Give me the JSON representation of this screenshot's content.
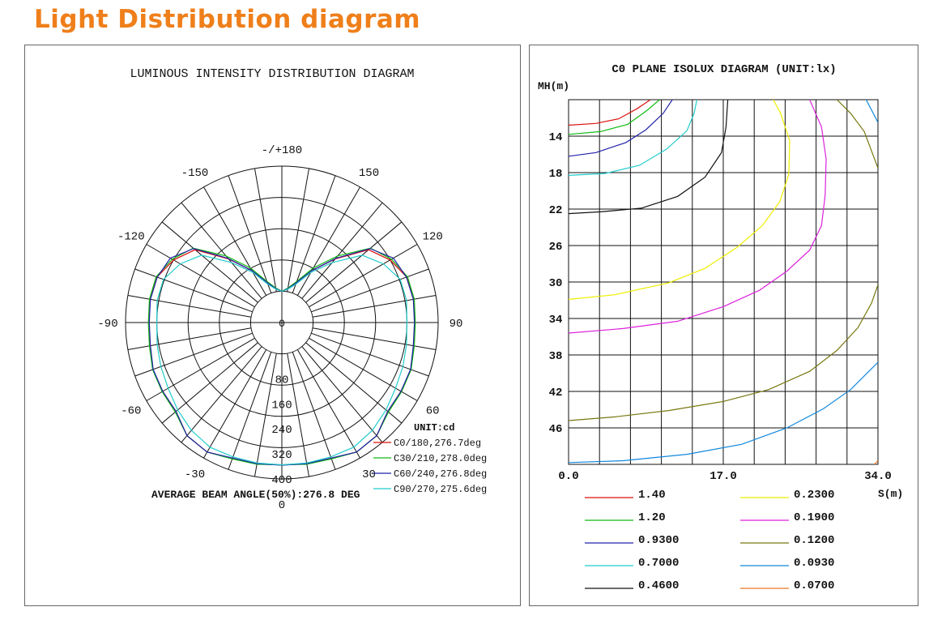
{
  "page_title": "Light Distribution diagram",
  "chart_data": [
    {
      "type": "polar",
      "title": "LUMINOUS INTENSITY DISTRIBUTION DIAGRAM",
      "unit_label": "UNIT:cd",
      "angle_labels": [
        {
          "angle": 0,
          "text": "0"
        },
        {
          "angle": 30,
          "text": "30"
        },
        {
          "angle": 60,
          "text": "60"
        },
        {
          "angle": 90,
          "text": "90"
        },
        {
          "angle": 120,
          "text": "120"
        },
        {
          "angle": 150,
          "text": "150"
        },
        {
          "angle": 180,
          "text": "-/+180"
        },
        {
          "angle": -150,
          "text": "-150"
        },
        {
          "angle": -120,
          "text": "-120"
        },
        {
          "angle": -90,
          "text": "-90"
        },
        {
          "angle": -60,
          "text": "-60"
        },
        {
          "angle": -30,
          "text": "-30"
        }
      ],
      "radial_ticks": [
        {
          "value": 80,
          "text": "80"
        },
        {
          "value": 160,
          "text": "160"
        },
        {
          "value": 240,
          "text": "240"
        },
        {
          "value": 320,
          "text": "320"
        },
        {
          "value": 400,
          "text": "400"
        }
      ],
      "radial_zero_label": "0",
      "rmax": 400,
      "series": [
        {
          "name": "C0/180,276.7deg",
          "color": "#dd1111",
          "angles": [
            0,
            10,
            20,
            30,
            40,
            50,
            60,
            70,
            80,
            90,
            100,
            110,
            120,
            130,
            140,
            150,
            160,
            170,
            180
          ],
          "values": [
            355,
            358,
            362,
            378,
            372,
            342,
            340,
            339,
            328,
            325,
            328,
            325,
            300,
            262,
            165,
            92,
            36,
            10,
            0
          ]
        },
        {
          "name": "C30/210,278.0deg",
          "color": "#11bb11",
          "angles": [
            0,
            10,
            20,
            30,
            40,
            50,
            60,
            70,
            80,
            90,
            100,
            110,
            120,
            130,
            140,
            150,
            160,
            170,
            180
          ],
          "values": [
            355,
            360,
            364,
            378,
            372,
            345,
            342,
            340,
            330,
            327,
            330,
            328,
            305,
            270,
            178,
            102,
            40,
            12,
            0
          ]
        },
        {
          "name": "C60/240,276.8deg",
          "color": "#2222aa",
          "angles": [
            0,
            10,
            20,
            30,
            40,
            50,
            60,
            70,
            80,
            90,
            100,
            110,
            120,
            130,
            140,
            150,
            160,
            170,
            180
          ],
          "values": [
            356,
            358,
            361,
            378,
            372,
            342,
            340,
            338,
            327,
            324,
            327,
            324,
            312,
            268,
            168,
            92,
            36,
            10,
            0
          ]
        },
        {
          "name": "C90/270,275.6deg",
          "color": "#22cccc",
          "angles": [
            0,
            10,
            20,
            30,
            40,
            50,
            60,
            70,
            80,
            90,
            100,
            110,
            120,
            130,
            140,
            150,
            160,
            170,
            180
          ],
          "values": [
            355,
            356,
            357,
            360,
            350,
            335,
            320,
            312,
            305,
            300,
            305,
            303,
            275,
            235,
            150,
            85,
            30,
            8,
            0
          ]
        }
      ],
      "footer": "AVERAGE BEAM ANGLE(50%):276.8 DEG"
    },
    {
      "type": "isolux",
      "title": "C0 PLANE ISOLUX DIAGRAM (UNIT:lx)",
      "y_axis_label": "MH(m)",
      "x_axis_label": "S(m)",
      "xlim": [
        0,
        34
      ],
      "ylim": [
        10,
        50
      ],
      "x_tick_labels": [
        {
          "value": 0,
          "text": "0.0"
        },
        {
          "value": 17,
          "text": "17.0"
        },
        {
          "value": 34,
          "text": "34.0"
        }
      ],
      "y_tick_labels": [
        {
          "value": 14,
          "text": "14"
        },
        {
          "value": 18,
          "text": "18"
        },
        {
          "value": 22,
          "text": "22"
        },
        {
          "value": 26,
          "text": "26"
        },
        {
          "value": 30,
          "text": "30"
        },
        {
          "value": 34,
          "text": "34"
        },
        {
          "value": 38,
          "text": "38"
        },
        {
          "value": 42,
          "text": "42"
        },
        {
          "value": 46,
          "text": "46"
        }
      ],
      "series": [
        {
          "name": "1.40",
          "color": "#dd1111",
          "points": [
            [
              0,
              12.8
            ],
            [
              3,
              12.6
            ],
            [
              5.5,
              12.1
            ],
            [
              7.5,
              11
            ],
            [
              9,
              10
            ]
          ]
        },
        {
          "name": "1.20",
          "color": "#11bb11",
          "points": [
            [
              0,
              13.8
            ],
            [
              3.5,
              13.5
            ],
            [
              6.5,
              12.7
            ],
            [
              8.6,
              11.2
            ],
            [
              10,
              10
            ]
          ]
        },
        {
          "name": "0.9300",
          "color": "#2222aa",
          "points": [
            [
              0,
              16.2
            ],
            [
              3,
              15.8
            ],
            [
              6.3,
              14.7
            ],
            [
              8.5,
              13.3
            ],
            [
              10.4,
              11.5
            ],
            [
              11.4,
              10
            ]
          ]
        },
        {
          "name": "0.7000",
          "color": "#22cccc",
          "points": [
            [
              0,
              18.3
            ],
            [
              4,
              18.1
            ],
            [
              7.8,
              17.2
            ],
            [
              10.8,
              15.4
            ],
            [
              13,
              13.4
            ],
            [
              13.8,
              11.5
            ],
            [
              14.1,
              10
            ]
          ]
        },
        {
          "name": "0.4600",
          "color": "#111111",
          "points": [
            [
              0,
              22.5
            ],
            [
              3.5,
              22.3
            ],
            [
              8,
              21.9
            ],
            [
              12,
              20.6
            ],
            [
              15,
              18.5
            ],
            [
              16.8,
              15.8
            ],
            [
              17.3,
              13
            ],
            [
              17.5,
              10
            ]
          ]
        },
        {
          "name": "0.2300",
          "color": "#eeee00",
          "points": [
            [
              0,
              31.9
            ],
            [
              5,
              31.4
            ],
            [
              11,
              30.1
            ],
            [
              15,
              28.5
            ],
            [
              18.5,
              26.2
            ],
            [
              21.3,
              23.8
            ],
            [
              23.2,
              21.2
            ],
            [
              24.2,
              18.2
            ],
            [
              24.3,
              14.5
            ],
            [
              23.3,
              11.5
            ],
            [
              22.5,
              10
            ]
          ]
        },
        {
          "name": "0.1900",
          "color": "#dd22dd",
          "points": [
            [
              0,
              35.6
            ],
            [
              6,
              35.1
            ],
            [
              12,
              34.3
            ],
            [
              17,
              32.7
            ],
            [
              21,
              30.9
            ],
            [
              24,
              28.8
            ],
            [
              26.5,
              26.5
            ],
            [
              27.8,
              23.8
            ],
            [
              28.2,
              20.5
            ],
            [
              28.3,
              16.5
            ],
            [
              27.8,
              13
            ],
            [
              26.5,
              10
            ]
          ]
        },
        {
          "name": "0.1200",
          "color": "#777711",
          "points": [
            [
              0,
              45.2
            ],
            [
              5,
              44.8
            ],
            [
              11,
              44.1
            ],
            [
              17,
              43.1
            ],
            [
              22,
              41.8
            ],
            [
              26.5,
              39.8
            ],
            [
              29.5,
              37.5
            ],
            [
              31.8,
              35
            ],
            [
              33.3,
              32.3
            ],
            [
              34,
              30.3
            ]
          ]
        },
        {
          "name": "0.0930",
          "color": "#1188dd",
          "points": [
            [
              0,
              49.8
            ],
            [
              6,
              49.6
            ],
            [
              13,
              48.9
            ],
            [
              19,
              47.8
            ],
            [
              24,
              46
            ],
            [
              28,
              43.9
            ],
            [
              31,
              41.8
            ],
            [
              33,
              39.8
            ],
            [
              34,
              38.8
            ]
          ]
        },
        {
          "name": "0.0700",
          "color": "#ee7722",
          "points": [
            [
              33.6,
              50
            ],
            [
              34,
              49.6
            ]
          ]
        },
        {
          "name": "0.1200",
          "color": "#777711",
          "points": [
            [
              29.5,
              10
            ],
            [
              31,
              11.5
            ],
            [
              32.5,
              13.5
            ],
            [
              34,
              17.5
            ]
          ]
        },
        {
          "name": "0.0930",
          "color": "#1188dd",
          "points": [
            [
              32.7,
              10
            ],
            [
              34,
              12.5
            ]
          ]
        }
      ],
      "legend": [
        {
          "value": "1.40",
          "color": "#dd1111"
        },
        {
          "value": "1.20",
          "color": "#11bb11"
        },
        {
          "value": "0.9300",
          "color": "#2222aa"
        },
        {
          "value": "0.7000",
          "color": "#22cccc"
        },
        {
          "value": "0.4600",
          "color": "#111111"
        },
        {
          "value": "0.2300",
          "color": "#eeee00"
        },
        {
          "value": "0.1900",
          "color": "#dd22dd"
        },
        {
          "value": "0.1200",
          "color": "#777711"
        },
        {
          "value": "0.0930",
          "color": "#1188dd"
        },
        {
          "value": "0.0700",
          "color": "#ee7722"
        }
      ]
    }
  ]
}
